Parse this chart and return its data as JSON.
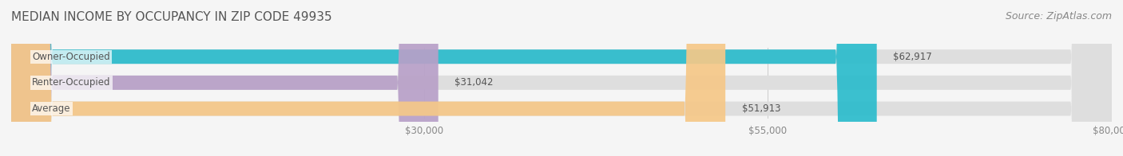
{
  "title": "MEDIAN INCOME BY OCCUPANCY IN ZIP CODE 49935",
  "source": "Source: ZipAtlas.com",
  "categories": [
    "Owner-Occupied",
    "Renter-Occupied",
    "Average"
  ],
  "values": [
    62917,
    31042,
    51913
  ],
  "bar_colors": [
    "#2bbccc",
    "#b8a0c8",
    "#f5c888"
  ],
  "bar_bg_color": "#e8e8e8",
  "value_labels": [
    "$62,917",
    "$31,042",
    "$51,913"
  ],
  "xlim": [
    0,
    80000
  ],
  "xticks": [
    30000,
    55000,
    80000
  ],
  "xtick_labels": [
    "$30,000",
    "$55,000",
    "$80,000"
  ],
  "title_fontsize": 11,
  "source_fontsize": 9,
  "label_fontsize": 8.5,
  "bar_height": 0.55,
  "figsize": [
    14.06,
    1.96
  ],
  "dpi": 100,
  "bg_color": "#f5f5f5",
  "bar_bg_alpha": 0.5,
  "title_color": "#555555",
  "source_color": "#888888",
  "tick_color": "#888888",
  "value_label_color": "#555555",
  "cat_label_color": "#555555"
}
